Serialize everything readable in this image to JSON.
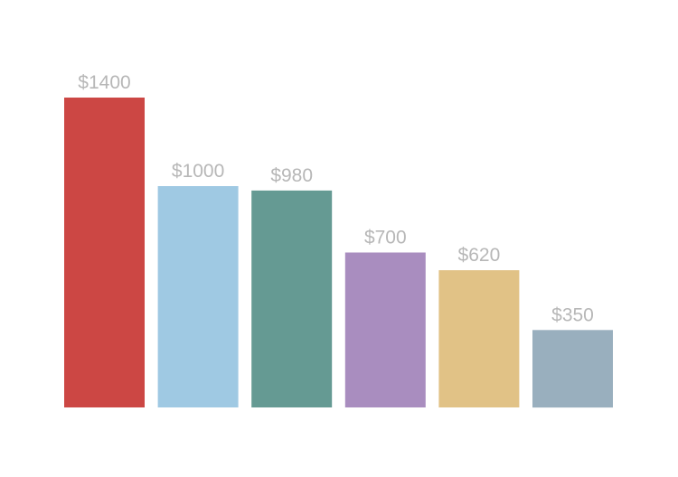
{
  "chart_data": {
    "type": "bar",
    "title": "",
    "xlabel": "",
    "ylabel": "",
    "ylim": [
      0,
      1400
    ],
    "grid": false,
    "legend": "none",
    "categories": [
      "",
      "",
      "",
      "",
      "",
      ""
    ],
    "values": [
      1400,
      1000,
      980,
      700,
      620,
      350
    ],
    "value_labels": [
      "$1400",
      "$1000",
      "$980",
      "$700",
      "$620",
      "$350"
    ],
    "colors": [
      "#cc4744",
      "#9fc9e3",
      "#659a93",
      "#a98dbf",
      "#e1c286",
      "#99afbe"
    ],
    "label_color": "#b7b7b7"
  }
}
